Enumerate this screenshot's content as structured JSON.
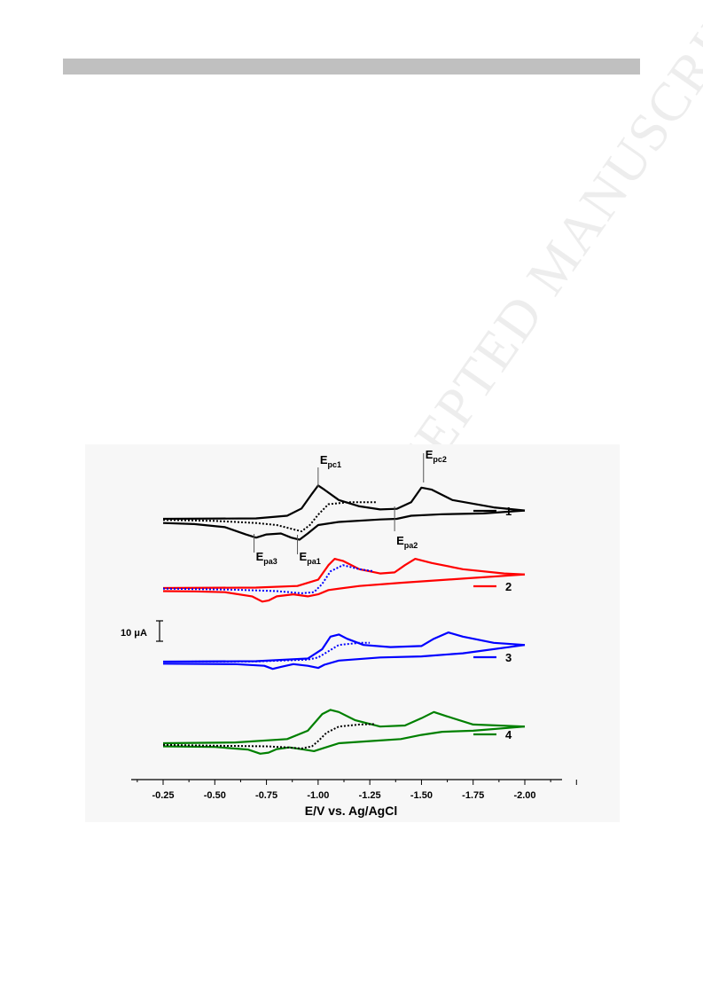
{
  "watermark": "ACCEPTED MANUSCRIPT",
  "chart_data": {
    "type": "line",
    "xlabel": "E/V vs. Ag/AgCl",
    "xlim": [
      -0.1,
      -2.25
    ],
    "x_axis_reversed": true,
    "x_ticks": [
      "-0.25",
      "-0.50",
      "-0.75",
      "-1.00",
      "-1.25",
      "-1.50",
      "-1.75",
      "-2.00"
    ],
    "scale_bar_label": "10  μA",
    "peak_labels": [
      {
        "main": "E",
        "sub": "pc1",
        "x": -1.0
      },
      {
        "main": "E",
        "sub": "pc2",
        "x": -1.51
      },
      {
        "main": "E",
        "sub": "pa2",
        "x": -1.37
      },
      {
        "main": "E",
        "sub": "pa3",
        "x": -0.69
      },
      {
        "main": "E",
        "sub": "pa1",
        "x": -0.9
      }
    ],
    "series": [
      {
        "name": "1",
        "color": "#000000",
        "dashed_color": "#000000",
        "forward": [
          [
            -0.25,
            0
          ],
          [
            -0.7,
            0.2
          ],
          [
            -0.85,
            1.5
          ],
          [
            -0.92,
            5
          ],
          [
            -0.97,
            12
          ],
          [
            -1.0,
            16
          ],
          [
            -1.03,
            14
          ],
          [
            -1.1,
            9
          ],
          [
            -1.2,
            6
          ],
          [
            -1.3,
            4.5
          ],
          [
            -1.38,
            4.8
          ],
          [
            -1.45,
            8
          ],
          [
            -1.5,
            15
          ],
          [
            -1.55,
            14
          ],
          [
            -1.65,
            9
          ],
          [
            -1.85,
            5.5
          ],
          [
            -2.0,
            4
          ]
        ],
        "reverse": [
          [
            -2.0,
            4
          ],
          [
            -1.8,
            2.6
          ],
          [
            -1.6,
            2.2
          ],
          [
            -1.45,
            1.5
          ],
          [
            -1.38,
            0
          ],
          [
            -1.3,
            -0.3
          ],
          [
            -1.1,
            -1.5
          ],
          [
            -1.0,
            -3
          ],
          [
            -0.95,
            -7
          ],
          [
            -0.91,
            -10
          ],
          [
            -0.87,
            -9
          ],
          [
            -0.82,
            -7
          ],
          [
            -0.75,
            -7.5
          ],
          [
            -0.7,
            -9
          ],
          [
            -0.65,
            -7.5
          ],
          [
            -0.55,
            -4
          ],
          [
            -0.4,
            -2.5
          ],
          [
            -0.25,
            -2
          ]
        ],
        "dashed": [
          [
            -0.25,
            -0.5
          ],
          [
            -0.5,
            -1
          ],
          [
            -0.7,
            -2
          ],
          [
            -0.8,
            -3
          ],
          [
            -0.88,
            -5
          ],
          [
            -0.92,
            -6
          ],
          [
            -0.96,
            -3
          ],
          [
            -1.0,
            2
          ],
          [
            -1.05,
            7
          ],
          [
            -1.15,
            8
          ],
          [
            -1.25,
            8
          ],
          [
            -1.28,
            8
          ]
        ]
      },
      {
        "name": "2",
        "color": "#ff0000",
        "dashed_color": "#0000ff",
        "forward": [
          [
            -0.25,
            0
          ],
          [
            -0.7,
            0.2
          ],
          [
            -0.9,
            1
          ],
          [
            -1.0,
            4
          ],
          [
            -1.05,
            11
          ],
          [
            -1.08,
            14
          ],
          [
            -1.12,
            13
          ],
          [
            -1.2,
            9
          ],
          [
            -1.3,
            7
          ],
          [
            -1.37,
            7.5
          ],
          [
            -1.42,
            11
          ],
          [
            -1.47,
            14
          ],
          [
            -1.55,
            12
          ],
          [
            -1.7,
            9
          ],
          [
            -1.9,
            7
          ],
          [
            -2.0,
            6.5
          ]
        ],
        "reverse": [
          [
            -2.0,
            6.5
          ],
          [
            -1.7,
            4.5
          ],
          [
            -1.4,
            2.5
          ],
          [
            -1.2,
            1
          ],
          [
            -1.05,
            -1
          ],
          [
            -1.0,
            -3
          ],
          [
            -0.95,
            -4
          ],
          [
            -0.88,
            -3
          ],
          [
            -0.8,
            -4
          ],
          [
            -0.76,
            -6
          ],
          [
            -0.73,
            -6.5
          ],
          [
            -0.68,
            -4
          ],
          [
            -0.55,
            -2
          ],
          [
            -0.4,
            -1.6
          ],
          [
            -0.25,
            -1.5
          ]
        ],
        "dashed": [
          [
            -0.25,
            -0.3
          ],
          [
            -0.6,
            -0.8
          ],
          [
            -0.8,
            -1.5
          ],
          [
            -0.92,
            -2.5
          ],
          [
            -0.98,
            -2
          ],
          [
            -1.02,
            2
          ],
          [
            -1.06,
            8
          ],
          [
            -1.12,
            11
          ],
          [
            -1.2,
            9
          ],
          [
            -1.27,
            8
          ]
        ]
      },
      {
        "name": "3",
        "color": "#0000ff",
        "dashed_color": "#0000ff",
        "forward": [
          [
            -0.25,
            0
          ],
          [
            -0.7,
            0.2
          ],
          [
            -0.95,
            1.5
          ],
          [
            -1.02,
            6
          ],
          [
            -1.06,
            12
          ],
          [
            -1.1,
            13
          ],
          [
            -1.14,
            11
          ],
          [
            -1.22,
            8
          ],
          [
            -1.35,
            7
          ],
          [
            -1.5,
            7.5
          ],
          [
            -1.56,
            11
          ],
          [
            -1.63,
            14
          ],
          [
            -1.7,
            12
          ],
          [
            -1.85,
            9
          ],
          [
            -2.0,
            8
          ]
        ],
        "reverse": [
          [
            -2.0,
            8
          ],
          [
            -1.7,
            4
          ],
          [
            -1.5,
            2.5
          ],
          [
            -1.3,
            2
          ],
          [
            -1.1,
            0.5
          ],
          [
            -1.03,
            -1.5
          ],
          [
            -1.0,
            -3
          ],
          [
            -0.95,
            -2
          ],
          [
            -0.88,
            -1.2
          ],
          [
            -0.82,
            -2.5
          ],
          [
            -0.78,
            -3.5
          ],
          [
            -0.74,
            -2
          ],
          [
            -0.6,
            -1.2
          ],
          [
            -0.25,
            -1
          ]
        ],
        "dashed": [
          [
            -0.25,
            0
          ],
          [
            -0.7,
            0.1
          ],
          [
            -0.95,
            1
          ],
          [
            -1.0,
            2
          ],
          [
            -1.05,
            5
          ],
          [
            -1.1,
            8
          ],
          [
            -1.2,
            9
          ],
          [
            -1.25,
            9
          ]
        ]
      },
      {
        "name": "4",
        "color": "#008000",
        "dashed_color": "#000000",
        "forward": [
          [
            -0.25,
            0
          ],
          [
            -0.6,
            0.4
          ],
          [
            -0.85,
            2
          ],
          [
            -0.95,
            6
          ],
          [
            -1.02,
            14
          ],
          [
            -1.06,
            16
          ],
          [
            -1.1,
            15
          ],
          [
            -1.18,
            11
          ],
          [
            -1.3,
            8
          ],
          [
            -1.42,
            8.5
          ],
          [
            -1.5,
            12
          ],
          [
            -1.56,
            15
          ],
          [
            -1.62,
            13
          ],
          [
            -1.75,
            9
          ],
          [
            -2.0,
            8
          ]
        ],
        "reverse": [
          [
            -2.0,
            8
          ],
          [
            -1.75,
            6
          ],
          [
            -1.6,
            5.5
          ],
          [
            -1.5,
            4
          ],
          [
            -1.4,
            2
          ],
          [
            -1.25,
            1
          ],
          [
            -1.1,
            0
          ],
          [
            -1.02,
            -2.5
          ],
          [
            -0.98,
            -3.8
          ],
          [
            -0.93,
            -3
          ],
          [
            -0.86,
            -2
          ],
          [
            -0.8,
            -2.8
          ],
          [
            -0.76,
            -4.5
          ],
          [
            -0.72,
            -5
          ],
          [
            -0.66,
            -3
          ],
          [
            -0.5,
            -1.8
          ],
          [
            -0.25,
            -1.5
          ]
        ],
        "dashed": [
          [
            -0.25,
            -0.8
          ],
          [
            -0.5,
            -1.2
          ],
          [
            -0.75,
            -1.5
          ],
          [
            -0.85,
            -2
          ],
          [
            -0.92,
            -2.5
          ],
          [
            -0.97,
            -1.5
          ],
          [
            -1.0,
            1
          ],
          [
            -1.04,
            5
          ],
          [
            -1.1,
            8
          ],
          [
            -1.2,
            9
          ],
          [
            -1.27,
            9.2
          ]
        ]
      }
    ]
  }
}
